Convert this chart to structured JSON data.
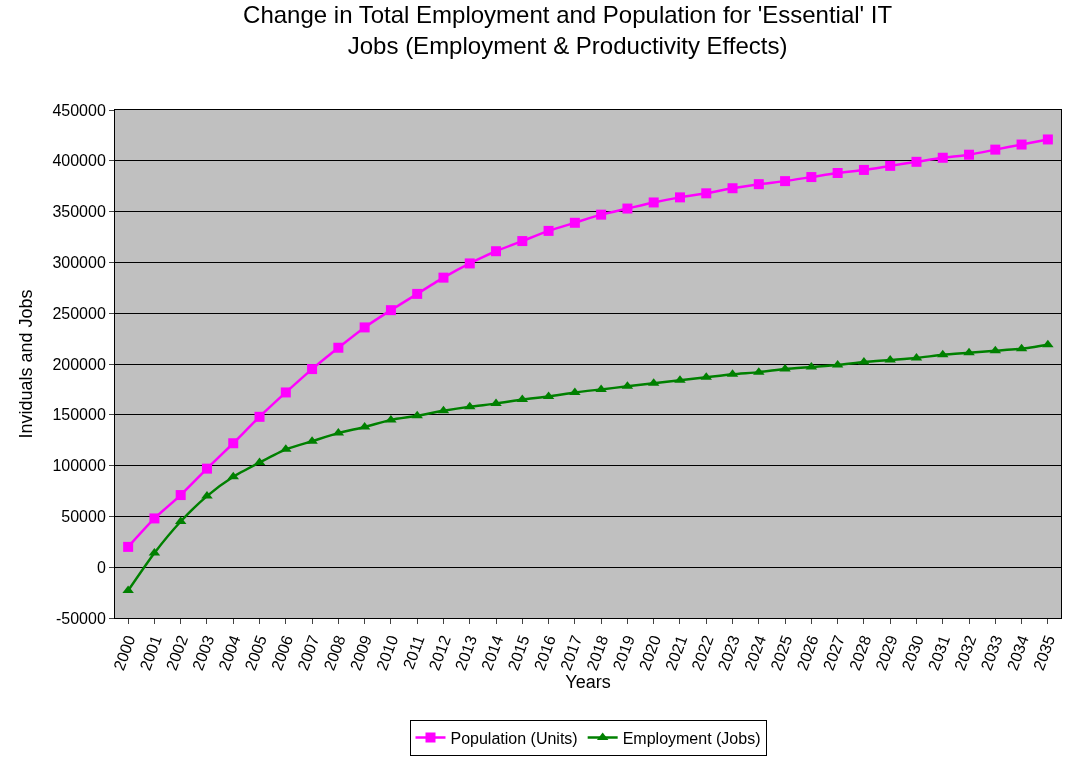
{
  "chart_data": {
    "type": "line",
    "title": "Change in Total Employment and Population for 'Essential' IT Jobs (Employment & Productivity Effects)",
    "xlabel": "Years",
    "ylabel": "Inviduals and Jobs",
    "categories": [
      "2000",
      "2001",
      "2002",
      "2003",
      "2004",
      "2005",
      "2006",
      "2007",
      "2008",
      "2009",
      "2010",
      "2011",
      "2012",
      "2013",
      "2014",
      "2015",
      "2016",
      "2017",
      "2018",
      "2019",
      "2020",
      "2021",
      "2022",
      "2023",
      "2024",
      "2025",
      "2026",
      "2027",
      "2028",
      "2029",
      "2030",
      "2031",
      "2032",
      "2033",
      "2034",
      "2035"
    ],
    "series": [
      {
        "name": "Population (Units)",
        "color": "#ff00ff",
        "marker": "square",
        "values": [
          20000,
          48000,
          71000,
          97000,
          122000,
          148000,
          172000,
          195000,
          216000,
          236000,
          253000,
          269000,
          285000,
          299000,
          311000,
          321000,
          331000,
          339000,
          347000,
          353000,
          359000,
          364000,
          368000,
          373000,
          377000,
          380000,
          384000,
          388000,
          391000,
          395000,
          399000,
          403000,
          406000,
          411000,
          416000,
          421000
        ]
      },
      {
        "name": "Employment (Jobs)",
        "color": "#008000",
        "marker": "triangle",
        "values": [
          -23000,
          14000,
          45000,
          70000,
          89000,
          103000,
          116000,
          124000,
          132000,
          138000,
          145000,
          149000,
          154000,
          158000,
          161000,
          165000,
          168000,
          172000,
          175000,
          178000,
          181000,
          184000,
          187000,
          190000,
          192000,
          195000,
          197000,
          199000,
          202000,
          204000,
          206000,
          209000,
          211000,
          213000,
          215000,
          219000
        ]
      }
    ],
    "ylim": [
      -50000,
      450000
    ],
    "yticks": [
      -50000,
      0,
      50000,
      100000,
      150000,
      200000,
      250000,
      300000,
      350000,
      400000,
      450000
    ],
    "grid": "y",
    "legend": "bottom"
  }
}
